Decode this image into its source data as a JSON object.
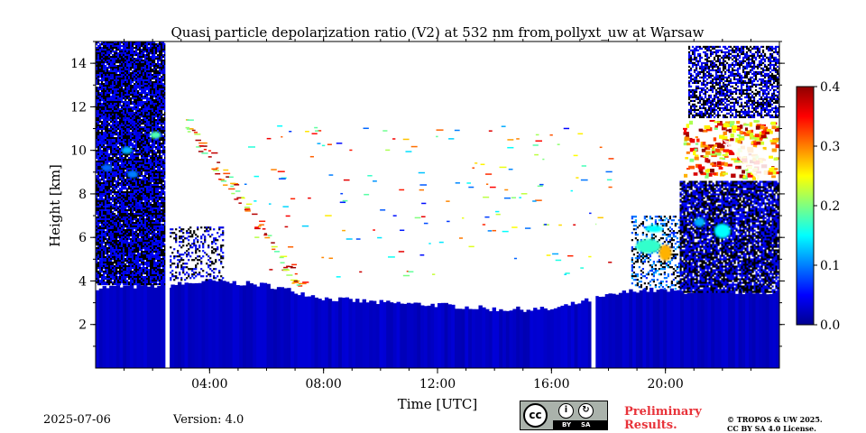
{
  "chart_data": {
    "type": "heatmap",
    "title": "Quasi particle depolarization ratio (V2) at 532 nm from pollyxt_uw at Warsaw",
    "xlabel": "Time [UTC]",
    "ylabel": "Height [km]",
    "x_ticks": [
      "04:00",
      "08:00",
      "12:00",
      "16:00",
      "20:00"
    ],
    "x_tick_hours": [
      4,
      8,
      12,
      16,
      20
    ],
    "xlim_hours": [
      0,
      24
    ],
    "y_ticks": [
      "2",
      "4",
      "6",
      "8",
      "10",
      "12",
      "14"
    ],
    "y_tick_values": [
      2,
      4,
      6,
      8,
      10,
      12,
      14
    ],
    "ylim": [
      0,
      15
    ],
    "colorbar": {
      "ticks": [
        "0.0",
        "0.1",
        "0.2",
        "0.3",
        "0.4"
      ],
      "tick_values": [
        0,
        0.1,
        0.2,
        0.3,
        0.4
      ],
      "range": [
        0,
        0.4
      ],
      "colormap": "jet"
    },
    "features": {
      "boundary_layer_top_km_by_hour": [
        [
          0,
          3.7
        ],
        [
          2.5,
          3.8
        ],
        [
          4,
          4.0
        ],
        [
          6,
          3.8
        ],
        [
          8,
          3.2
        ],
        [
          10,
          3.0
        ],
        [
          12,
          2.9
        ],
        [
          14,
          2.7
        ],
        [
          16,
          2.7
        ],
        [
          17.5,
          3.2
        ],
        [
          19,
          3.6
        ],
        [
          21,
          3.5
        ],
        [
          24,
          3.5
        ]
      ],
      "no_data_gaps_hours": [
        [
          2.45,
          2.6
        ],
        [
          17.4,
          17.55
        ]
      ],
      "high_depol_cirrus": [
        {
          "start_hour": 20.6,
          "end_hour": 24,
          "base_km": 8.5,
          "top_km": 11.5,
          "value": 0.38
        },
        {
          "start_hour": 2.5,
          "end_hour": 7.5,
          "base_km": 3.5,
          "top_km": 11.5,
          "value": 0.32
        }
      ]
    }
  },
  "footer": {
    "date": "2025-07-06",
    "version": "Version: 4.0",
    "preliminary_line1": "Preliminary",
    "preliminary_line2": "Results.",
    "copyright_line1": "© TROPOS & UW 2025.",
    "copyright_line2": "CC BY SA 4.0 License.",
    "badge": {
      "cc": "cc",
      "by": "BY",
      "sa": "SA"
    }
  },
  "colors": {
    "depol_low": "#0a46c8",
    "depol_high": "#d4130e",
    "noise": "#000000",
    "preliminary": "#e8333a",
    "badge_bg": "#aab2ab"
  }
}
